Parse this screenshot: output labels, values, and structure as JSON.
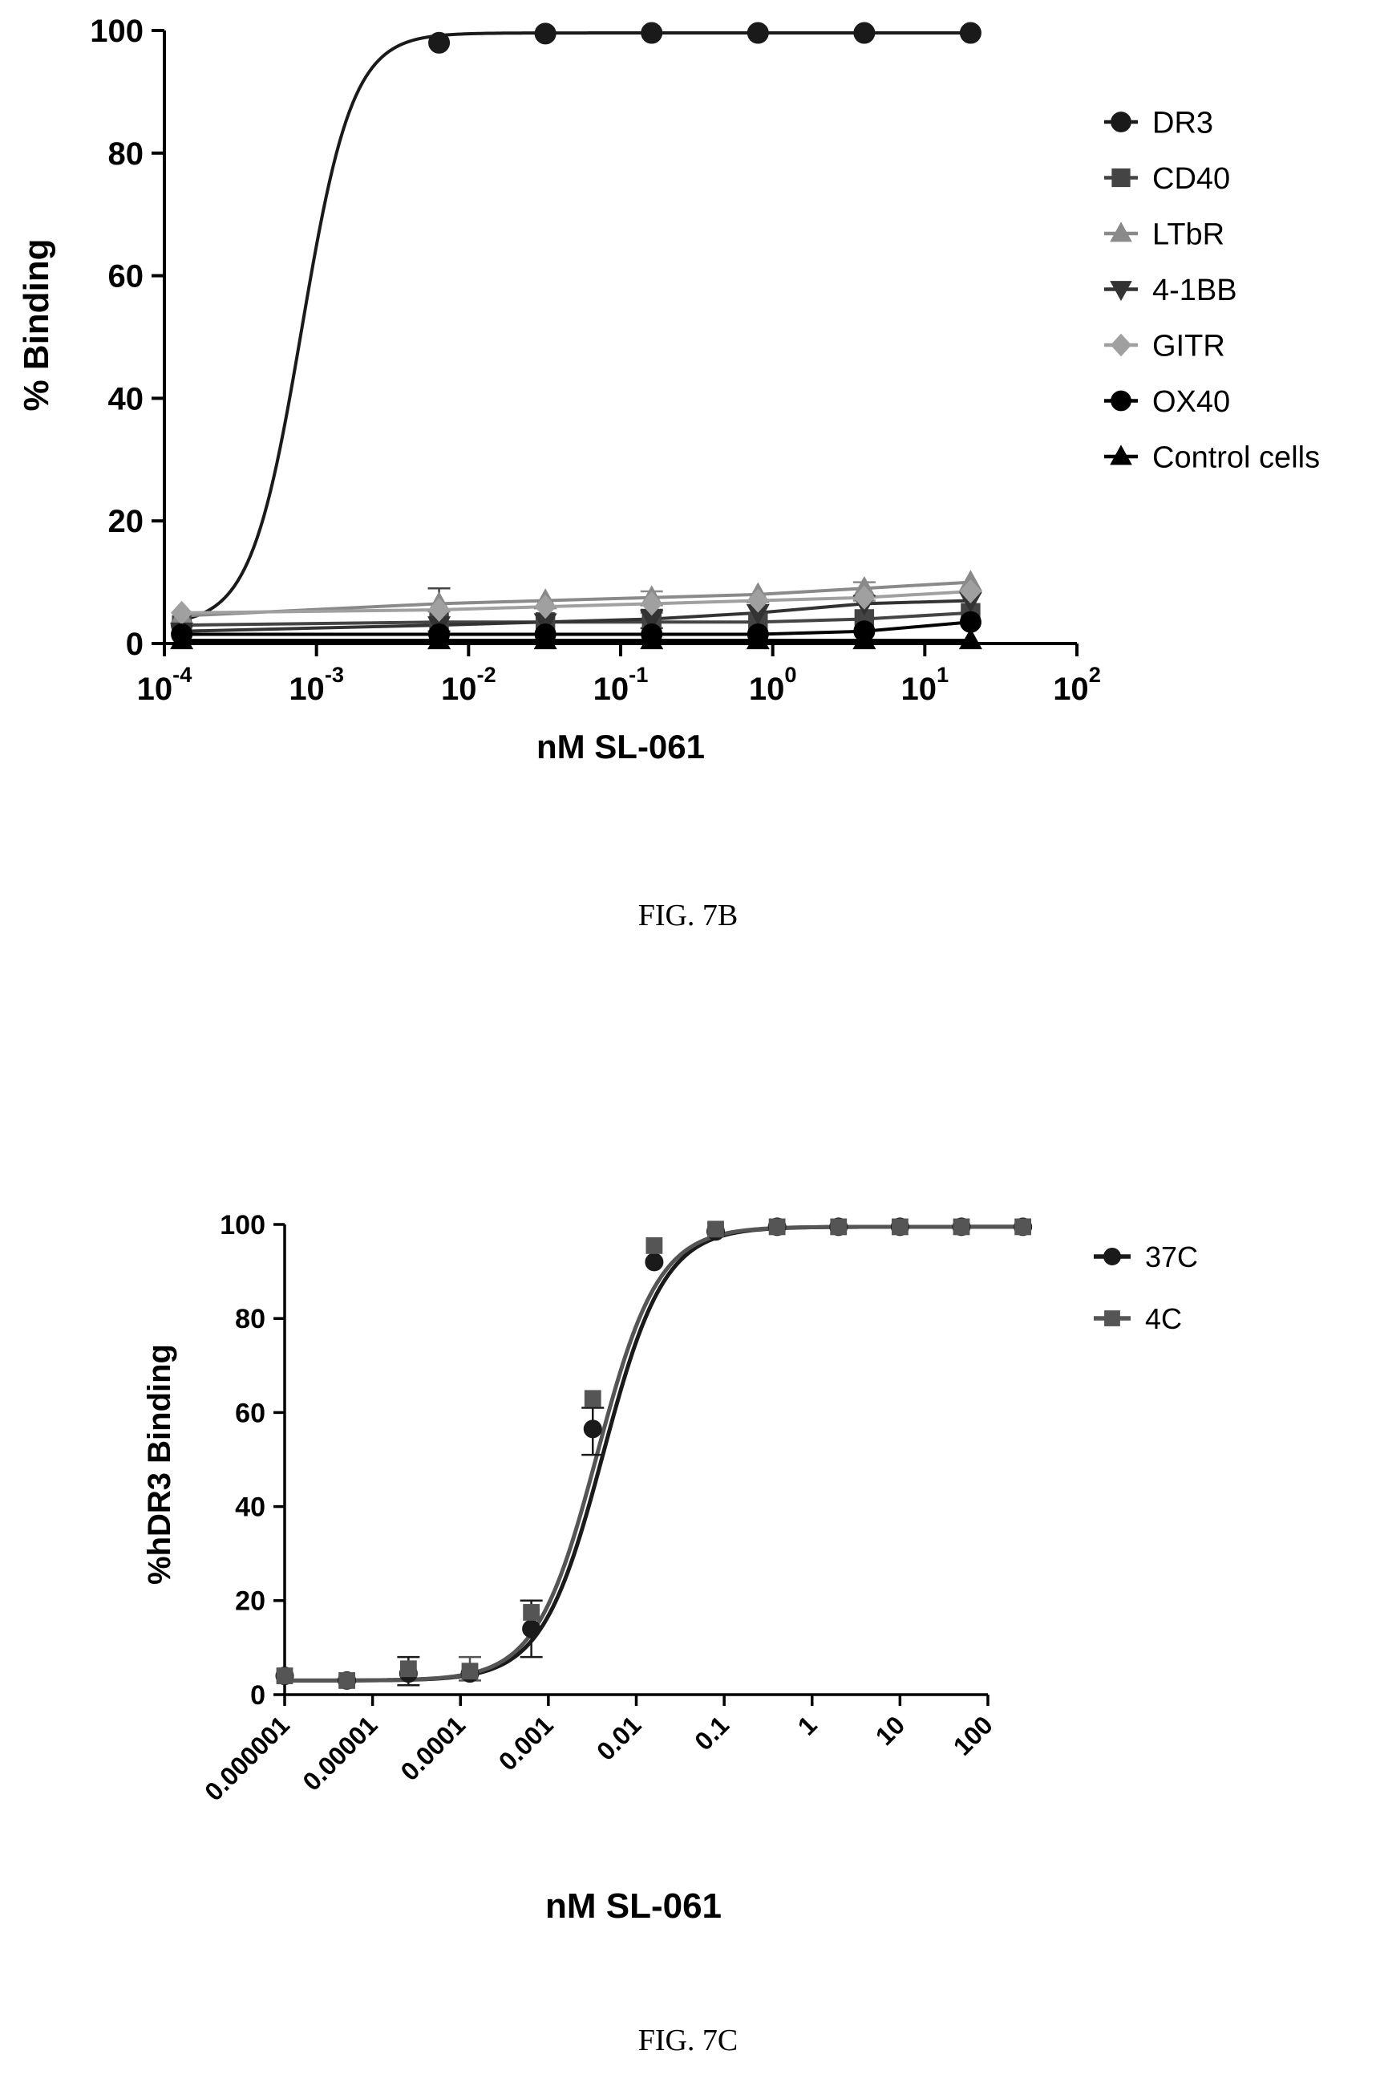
{
  "figures": [
    {
      "caption": "FIG. 7B"
    },
    {
      "caption": "FIG. 7C"
    }
  ],
  "chart_data": [
    {
      "type": "line",
      "title": "",
      "xlabel": "nM SL-061",
      "ylabel": "% Binding",
      "x_scale": "log",
      "xlim": [
        0.0001,
        100
      ],
      "ylim": [
        0,
        100
      ],
      "x_ticks": [
        {
          "base": "10",
          "exp": "-4",
          "value": 0.0001
        },
        {
          "base": "10",
          "exp": "-3",
          "value": 0.001
        },
        {
          "base": "10",
          "exp": "-2",
          "value": 0.01
        },
        {
          "base": "10",
          "exp": "-1",
          "value": 0.1
        },
        {
          "base": "10",
          "exp": "0",
          "value": 1
        },
        {
          "base": "10",
          "exp": "1",
          "value": 10
        },
        {
          "base": "10",
          "exp": "2",
          "value": 100
        }
      ],
      "y_ticks": [
        "0",
        "20",
        "40",
        "60",
        "80",
        "100"
      ],
      "legend_position": "right",
      "x": [
        0.00013,
        0.0064,
        0.032,
        0.16,
        0.8,
        4,
        20
      ],
      "series": [
        {
          "name": "DR3",
          "marker": "circle",
          "color": "#1a1a1a",
          "values": [
            3,
            98,
            99.5,
            99.6,
            99.6,
            99.6,
            99.6
          ],
          "curve": "sigmoid",
          "ec50": 0.0008
        },
        {
          "name": "CD40",
          "marker": "square",
          "color": "#444444",
          "values": [
            3,
            3.5,
            3.5,
            3.5,
            3.5,
            4,
            5
          ],
          "curve": "linear"
        },
        {
          "name": "LTbR",
          "marker": "triangle-up",
          "color": "#8a8a8a",
          "values": [
            4.5,
            6.5,
            7,
            7.5,
            8,
            9,
            10
          ],
          "curve": "linear"
        },
        {
          "name": "4-1BB",
          "marker": "triangle-down",
          "color": "#333333",
          "values": [
            2,
            3,
            3.5,
            4,
            5,
            6.5,
            7
          ],
          "curve": "linear"
        },
        {
          "name": "GITR",
          "marker": "diamond",
          "color": "#a0a0a0",
          "values": [
            5,
            5.5,
            6,
            6.5,
            7,
            7.5,
            8.5
          ],
          "curve": "linear"
        },
        {
          "name": "OX40",
          "marker": "circle",
          "color": "#000000",
          "values": [
            1.5,
            1.5,
            1.5,
            1.5,
            1.5,
            2,
            3.5
          ],
          "curve": "linear"
        },
        {
          "name": "Control cells",
          "marker": "triangle-up",
          "color": "#000000",
          "values": [
            0.5,
            0.5,
            0.5,
            0.5,
            0.5,
            0.5,
            0.5
          ],
          "curve": "linear"
        }
      ],
      "error_bars": [
        {
          "series": "CD40",
          "x": 0.0064,
          "low": 2,
          "high": 9
        },
        {
          "series": "LTbR",
          "x": 0.16,
          "low": 5,
          "high": 8.5
        },
        {
          "series": "LTbR",
          "x": 4,
          "low": 7,
          "high": 10
        },
        {
          "series": "4-1BB",
          "x": 0.16,
          "low": 2.5,
          "high": 5.5
        }
      ]
    },
    {
      "type": "line",
      "title": "",
      "xlabel": "nM SL-061",
      "ylabel": "%hDR3 Binding",
      "x_scale": "log",
      "xlim": [
        1e-06,
        100
      ],
      "ylim": [
        0,
        100
      ],
      "x_ticks": [
        {
          "label": "0.000001",
          "value": 1e-06
        },
        {
          "label": "0.00001",
          "value": 1e-05
        },
        {
          "label": "0.0001",
          "value": 0.0001
        },
        {
          "label": "0.001",
          "value": 0.001
        },
        {
          "label": "0.01",
          "value": 0.01
        },
        {
          "label": "0.1",
          "value": 0.1
        },
        {
          "label": "1",
          "value": 1
        },
        {
          "label": "10",
          "value": 10
        },
        {
          "label": "100",
          "value": 100
        }
      ],
      "y_ticks": [
        "0",
        "20",
        "40",
        "60",
        "80",
        "100"
      ],
      "legend_position": "right",
      "x": [
        1e-06,
        5.1e-06,
        2.56e-05,
        0.000128,
        0.00064,
        0.0032,
        0.016,
        0.08,
        0.4,
        2,
        10,
        50,
        250
      ],
      "series": [
        {
          "name": "37C",
          "marker": "circle",
          "color": "#1a1a1a",
          "values": [
            4,
            3,
            4.5,
            4.5,
            14,
            56.5,
            92,
            98.5,
            99.5,
            99.5,
            99.5,
            99.5,
            99.5
          ],
          "curve": "sigmoid",
          "ec50": 0.0042
        },
        {
          "name": "4C",
          "marker": "square",
          "color": "#555555",
          "values": [
            4,
            3,
            5.5,
            5,
            17.5,
            63,
            95.5,
            99,
            99.5,
            99.5,
            99.5,
            99.5,
            99.5
          ],
          "curve": "sigmoid",
          "ec50": 0.0036
        }
      ],
      "error_bars": [
        {
          "series": "37C",
          "x": 2.56e-05,
          "low": 2,
          "high": 8
        },
        {
          "series": "37C",
          "x": 0.00064,
          "low": 8,
          "high": 20
        },
        {
          "series": "37C",
          "x": 0.0032,
          "low": 51,
          "high": 61
        },
        {
          "series": "4C",
          "x": 0.000128,
          "low": 3,
          "high": 8
        }
      ]
    }
  ]
}
